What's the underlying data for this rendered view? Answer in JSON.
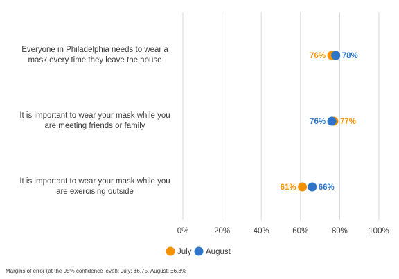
{
  "chart_data": {
    "type": "scatter",
    "subtype": "dot-plot",
    "categories": [
      [
        "Everyone in Philadelphia needs to wear a",
        "mask every time they leave the house"
      ],
      [
        "It is important to wear your mask while you",
        "are meeting friends or family"
      ],
      [
        "It is important to wear your mask while you",
        "are exercising outside"
      ]
    ],
    "series": [
      {
        "name": "July",
        "color": "#F39200",
        "values": [
          76,
          77,
          61
        ]
      },
      {
        "name": "August",
        "color": "#2E75C9",
        "values": [
          78,
          76,
          66
        ]
      }
    ],
    "xlim": [
      0,
      100
    ],
    "xticks": [
      0,
      20,
      40,
      60,
      80,
      100
    ],
    "tick_suffix": "%",
    "grid": true,
    "legend_position": "bottom-left"
  },
  "footnote": "Margins of error (at the 95% confidence level): July: ±6.75,  August: ±6.3%"
}
